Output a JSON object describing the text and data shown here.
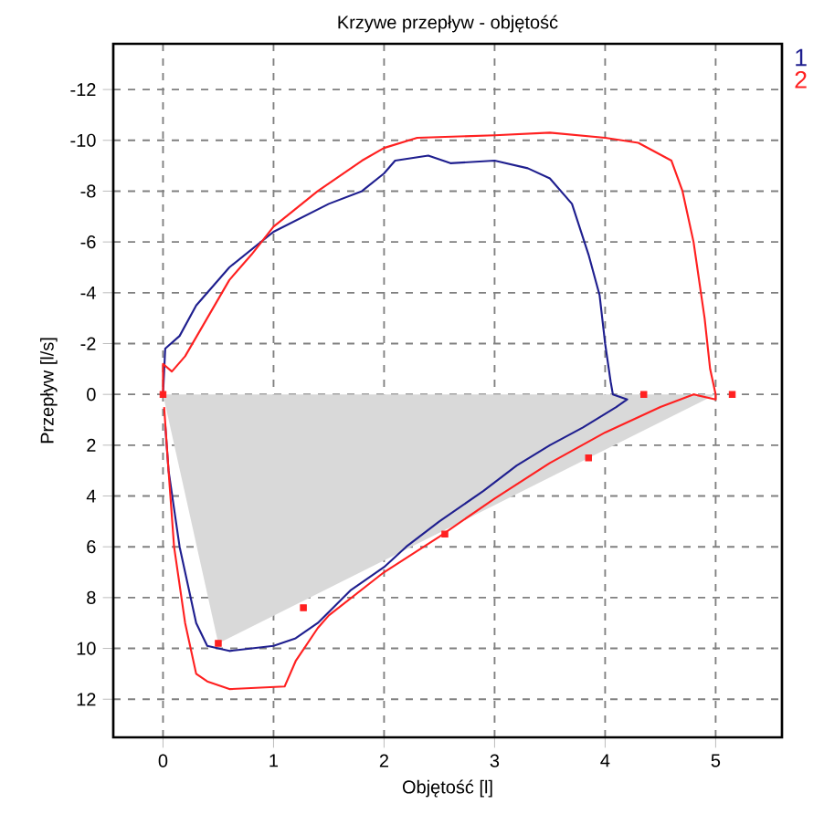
{
  "chart_data": {
    "type": "line",
    "title": "Krzywe przepływ - objętość",
    "xlabel": "Objętość [l]",
    "ylabel": "Przepływ [l/s]",
    "xlim": [
      -0.45,
      5.6
    ],
    "ylim": [
      13.5,
      -13.8
    ],
    "xticks": [
      0,
      1,
      2,
      3,
      4,
      5
    ],
    "yticks": [
      -12,
      -10,
      -8,
      -6,
      -4,
      -2,
      0,
      2,
      4,
      6,
      8,
      10,
      12
    ],
    "grid": true,
    "legend": "top right",
    "line_style": "solid",
    "series": [
      {
        "type": "area",
        "color": "#d9d9d9",
        "x": [
          0,
          0.5,
          5,
          0
        ],
        "values": [
          0,
          9.8,
          0,
          0
        ]
      },
      {
        "name": "1",
        "color": "#1f1f8f",
        "x": [
          0,
          0.02,
          0.15,
          0.3,
          0.6,
          1,
          1.5,
          1.8,
          2,
          2.1,
          2.4,
          2.6,
          3,
          3.3,
          3.5,
          3.7,
          3.85,
          3.95,
          4.0,
          4.05,
          4.07,
          4.07,
          4.2,
          4.1,
          3.8,
          3.5,
          3.2,
          2.9,
          2.5,
          2.2,
          2,
          1.7,
          1.4,
          1.2,
          1,
          0.6,
          0.4,
          0.3,
          0.15,
          0.05,
          0.02
        ],
        "values": [
          0,
          -1.8,
          -2.3,
          -3.5,
          -5,
          -6.4,
          -7.5,
          -8,
          -8.7,
          -9.2,
          -9.4,
          -9.1,
          -9.2,
          -8.9,
          -8.5,
          -7.5,
          -5.5,
          -3.9,
          -2,
          -0.5,
          0,
          0,
          0.2,
          0.5,
          1.3,
          2,
          2.8,
          3.8,
          5,
          6,
          6.8,
          7.7,
          9,
          9.6,
          9.9,
          10.1,
          9.9,
          9,
          6,
          3,
          1.2
        ]
      },
      {
        "name": "2",
        "color": "#ff2020",
        "x": [
          0,
          0,
          0.08,
          0.2,
          0.4,
          0.6,
          0.8,
          1,
          1.4,
          1.8,
          2,
          2.3,
          3,
          3.5,
          4,
          4.3,
          4.6,
          4.7,
          4.8,
          4.9,
          4.95,
          5,
          5,
          4.8,
          4.5,
          4,
          3.5,
          3,
          2.5,
          2,
          1.5,
          1.4,
          1.2,
          1.1,
          0.6,
          0.4,
          0.3,
          0.2,
          0.1,
          0.05,
          0.01
        ],
        "values": [
          0,
          -1.2,
          -0.9,
          -1.5,
          -3,
          -4.5,
          -5.5,
          -6.6,
          -8,
          -9.2,
          -9.7,
          -10.1,
          -10.2,
          -10.3,
          -10.1,
          -9.9,
          -9.2,
          -8,
          -6,
          -3,
          -1,
          0,
          0.2,
          0,
          0.5,
          1.5,
          2.7,
          4.1,
          5.6,
          7,
          8.7,
          9.2,
          10.5,
          11.5,
          11.6,
          11.3,
          11,
          9,
          6,
          3,
          0.5
        ]
      },
      {
        "type": "scatter",
        "color": "#ff2020",
        "marker": "square",
        "x": [
          0,
          4.35,
          5.15,
          3.85,
          2.55,
          1.27,
          0.5
        ],
        "values": [
          0,
          0,
          0,
          2.5,
          5.5,
          8.4,
          9.8
        ]
      }
    ]
  }
}
